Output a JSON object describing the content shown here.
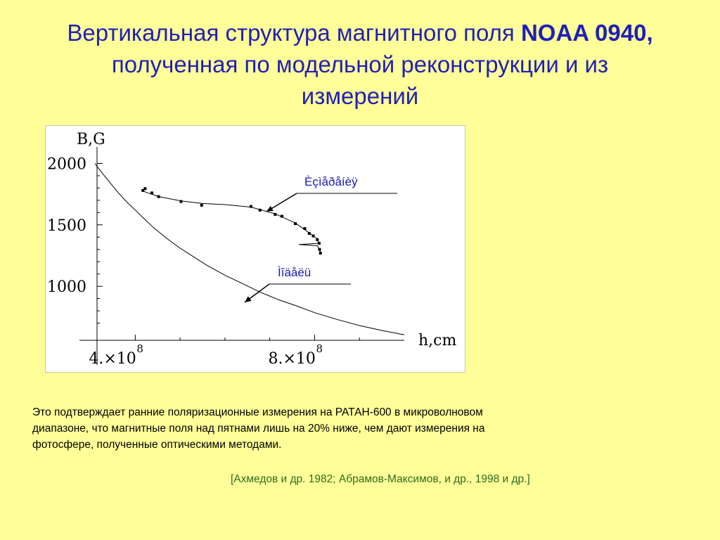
{
  "slide": {
    "title_part1": "Вертикальная структура магнитного поля ",
    "title_bold": "NOAA 0940,",
    "title_line2": "полученная по  модельной реконструкции и из",
    "title_line3": "измерений",
    "body_text_line1": "Это подтверждает ранние поляризационные измерения на РАТАН-600 в микроволновом",
    "body_text_line2": "диапазоне, что магнитные поля над пятнами лишь на 20% ниже, чем  дают измерения на",
    "body_text_line3": "фотосфере, полученные оптическими методами.",
    "references": "[Ахмедов и др. 1982; Абрамов-Максимов, и др., 1998 и др.]"
  },
  "chart_data": {
    "type": "scatter",
    "ylabel": "B,G",
    "xlabel": "h,cm",
    "yticks": [
      {
        "value": 2000,
        "label": "2000"
      },
      {
        "value": 1500,
        "label": "1500"
      },
      {
        "value": 1000,
        "label": "1000"
      }
    ],
    "xticks": [
      {
        "value": 400000000,
        "label": "4.×10",
        "exp": "8"
      },
      {
        "value": 800000000,
        "label": "8.×10",
        "exp": "8"
      }
    ],
    "xlim": [
      310000000,
      1000000000
    ],
    "ylim": [
      560,
      2100
    ],
    "annotations": {
      "measurements": "Èçìåðåíèÿ",
      "model": "Ìîäåëü"
    },
    "series": [
      {
        "key": "measurements",
        "style": "points",
        "color": "#000000",
        "x": [
          417000000,
          422000000,
          437000000,
          452000000,
          502000000,
          548000000,
          658000000,
          678000000,
          712000000,
          727000000,
          757000000,
          778000000,
          788000000,
          797000000,
          806000000,
          810000000,
          811000000,
          813000000
        ],
        "y": [
          1780,
          1795,
          1760,
          1730,
          1690,
          1660,
          1650,
          1620,
          1585,
          1570,
          1510,
          1470,
          1430,
          1410,
          1380,
          1350,
          1300,
          1270
        ]
      },
      {
        "key": "measurements",
        "style": "line",
        "color": "#000000",
        "x": [
          417000000,
          452000000,
          502000000,
          548000000,
          600000000,
          658000000,
          712000000,
          757000000,
          788000000,
          806000000,
          810000000,
          765000000,
          806000000,
          811000000,
          813000000
        ],
        "y": [
          1775,
          1730,
          1695,
          1675,
          1665,
          1645,
          1590,
          1515,
          1435,
          1385,
          1350,
          1340,
          1330,
          1300,
          1270
        ]
      },
      {
        "key": "model",
        "style": "line",
        "color": "#000000",
        "x": [
          310000000,
          320000000,
          340000000,
          360000000,
          380000000,
          400000000,
          420000000,
          440000000,
          470000000,
          500000000,
          530000000,
          560000000,
          600000000,
          640000000,
          680000000,
          720000000,
          760000000,
          800000000,
          850000000,
          900000000,
          950000000,
          1000000000
        ],
        "y": [
          2000,
          1950,
          1860,
          1770,
          1690,
          1620,
          1550,
          1480,
          1390,
          1310,
          1240,
          1170,
          1090,
          1020,
          950,
          890,
          840,
          785,
          730,
          680,
          640,
          605
        ]
      }
    ]
  }
}
